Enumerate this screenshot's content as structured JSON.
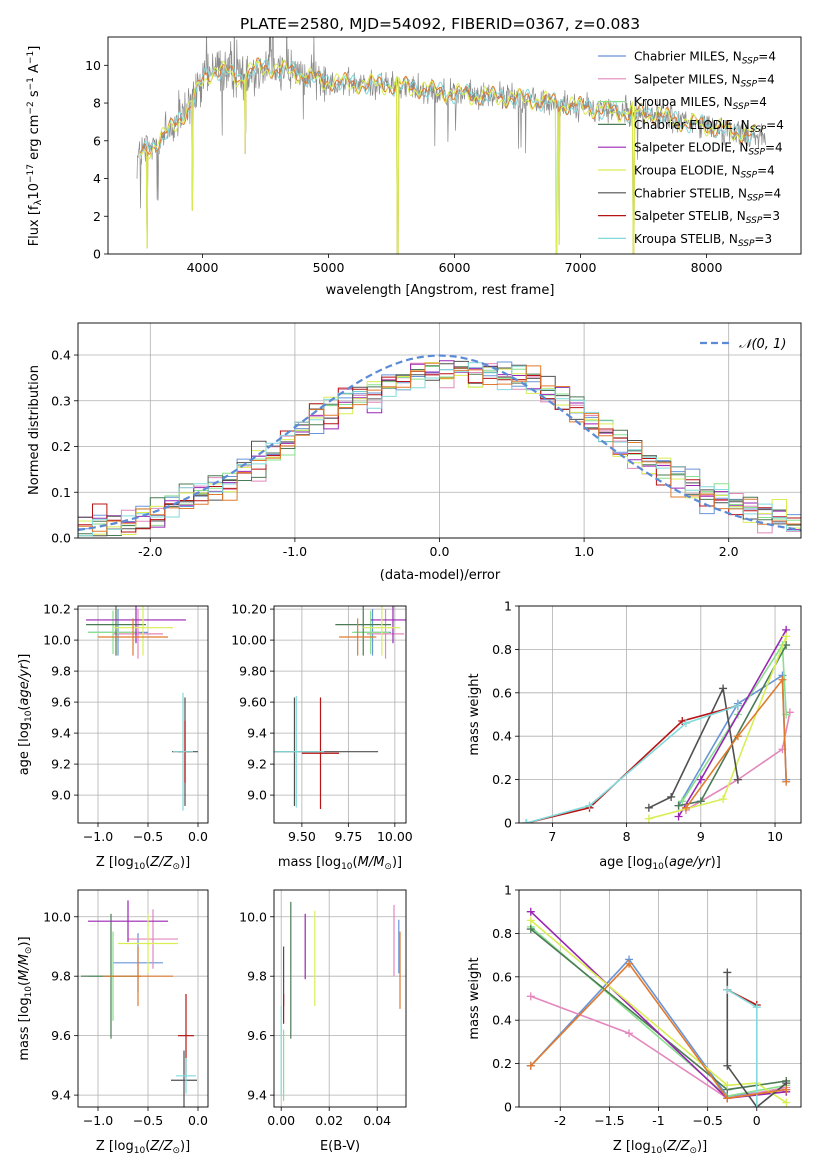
{
  "figure_title": "PLATE=2580, MJD=54092, FIBERID=0367, z=0.083",
  "colors": {
    "Chabrier MILES": "#6895d8",
    "Salpeter MILES": "#e487bc",
    "Kroupa MILES": "#88e08d",
    "Chabrier ELODIE": "#4b7a56",
    "Salpeter ELODIE": "#9a25b3",
    "Kroupa ELODIE": "#d9ee55",
    "Chabrier STELIB": "#505050",
    "Salpeter STELIB": "#b71515",
    "Kroupa STELIB": "#82dadc",
    "orange": "#e07a2e",
    "gray": "#8a8a8a",
    "normal": "#5b8ad6"
  },
  "chart_data": [
    {
      "id": "spectrum",
      "type": "line",
      "title": "PLATE=2580, MJD=54092, FIBERID=0367, z=0.083",
      "xlabel": "wavelength [Angstrom, rest frame]",
      "ylabel": "Flux [fλ10⁻¹⁷ erg cm⁻² s⁻¹ A⁻¹]",
      "xlim": [
        3250,
        8750
      ],
      "ylim": [
        0,
        11.5
      ],
      "xticks": [
        4000,
        5000,
        6000,
        7000,
        8000
      ],
      "yticks": [
        0,
        2,
        4,
        6,
        8,
        10
      ],
      "legend_position": "top-right",
      "legend": [
        {
          "name": "Chabrier MILES, N",
          "sub": "SSP",
          "suffix": "=4"
        },
        {
          "name": "Salpeter MILES, N",
          "sub": "SSP",
          "suffix": "=4"
        },
        {
          "name": "Kroupa MILES, N",
          "sub": "SSP",
          "suffix": "=4"
        },
        {
          "name": "Chabrier ELODIE, N",
          "sub": "SSP",
          "suffix": "=4"
        },
        {
          "name": "Salpeter ELODIE, N",
          "sub": "SSP",
          "suffix": "=4"
        },
        {
          "name": "Kroupa ELODIE, N",
          "sub": "SSP",
          "suffix": "=4"
        },
        {
          "name": "Chabrier STELIB, N",
          "sub": "SSP",
          "suffix": "=4"
        },
        {
          "name": "Salpeter STELIB, N",
          "sub": "SSP",
          "suffix": "=3"
        },
        {
          "name": "Kroupa STELIB, N",
          "sub": "SSP",
          "suffix": "=3"
        }
      ],
      "continuum": [
        [
          3500,
          5.2
        ],
        [
          3600,
          5.7
        ],
        [
          3700,
          6.3
        ],
        [
          3800,
          7.0
        ],
        [
          3900,
          7.8
        ],
        [
          4000,
          9.2
        ],
        [
          4100,
          9.8
        ],
        [
          4200,
          9.6
        ],
        [
          4300,
          9.3
        ],
        [
          4400,
          9.8
        ],
        [
          4500,
          9.9
        ],
        [
          4600,
          9.8
        ],
        [
          4700,
          9.7
        ],
        [
          4800,
          9.5
        ],
        [
          4900,
          9.2
        ],
        [
          5000,
          9.2
        ],
        [
          5200,
          9.0
        ],
        [
          5400,
          9.0
        ],
        [
          5600,
          8.9
        ],
        [
          5800,
          8.7
        ],
        [
          6000,
          8.5
        ],
        [
          6200,
          8.4
        ],
        [
          6400,
          8.3
        ],
        [
          6600,
          8.2
        ],
        [
          6800,
          8.0
        ],
        [
          7000,
          7.8
        ],
        [
          7200,
          7.6
        ],
        [
          7400,
          7.5
        ],
        [
          7600,
          7.4
        ],
        [
          7800,
          7.0
        ],
        [
          8000,
          6.8
        ],
        [
          8200,
          6.5
        ],
        [
          8400,
          6.3
        ]
      ],
      "model_range": [
        3500,
        8400
      ],
      "observed_range": [
        3480,
        8470
      ],
      "dips": [
        [
          3560,
          0.3
        ],
        [
          3920,
          2.3
        ],
        [
          4340,
          5.3
        ],
        [
          5550,
          0.0
        ],
        [
          6810,
          0.0
        ],
        [
          6830,
          0.5
        ],
        [
          7420,
          0.0
        ]
      ]
    },
    {
      "id": "residuals",
      "type": "bar",
      "xlabel": "(data-model)/error",
      "ylabel": "Normed distribution",
      "xlim": [
        -2.5,
        2.5
      ],
      "ylim": [
        0,
        0.47
      ],
      "xticks": [
        -2,
        -1,
        0,
        1,
        2
      ],
      "yticks": [
        0.0,
        0.1,
        0.2,
        0.3,
        0.4
      ],
      "legend_position": "top-right",
      "legend_label": "𝒩(0, 1)",
      "bin_width": 0.1,
      "n_bins": 50
    },
    {
      "id": "age_vs_Z",
      "type": "scatter",
      "xlabel": "Z [log10(Z/Z⊙)]",
      "ylabel": "age  [log10(age/yr)]",
      "xlim": [
        -1.2,
        0.1
      ],
      "ylim": [
        8.82,
        10.22
      ],
      "xticks": [
        -1.0,
        -0.5,
        0.0
      ],
      "yticks": [
        9.0,
        9.2,
        9.4,
        9.6,
        9.8,
        10.0,
        10.2
      ],
      "points": [
        {
          "model": "Chabrier MILES",
          "x": -0.8,
          "xerr": 0.3,
          "y": 10.05,
          "yerr": 0.15
        },
        {
          "model": "Salpeter MILES",
          "x": -0.6,
          "xerr": 0.25,
          "y": 10.04,
          "yerr": 0.16
        },
        {
          "model": "Kroupa MILES",
          "x": -0.85,
          "xerr": 0.25,
          "y": 10.05,
          "yerr": 0.14
        },
        {
          "model": "Chabrier ELODIE",
          "x": -0.82,
          "xerr": 0.3,
          "y": 10.1,
          "yerr": 0.2
        },
        {
          "model": "Salpeter ELODIE",
          "x": -0.62,
          "xerr": 0.5,
          "y": 10.13,
          "yerr": 0.15
        },
        {
          "model": "Kroupa ELODIE",
          "x": -0.55,
          "xerr": 0.3,
          "y": 10.08,
          "yerr": 0.18
        },
        {
          "model": "Chabrier STELIB",
          "x": -0.13,
          "xerr": 0.13,
          "y": 9.28,
          "yerr": 0.35
        },
        {
          "model": "Salpeter STELIB",
          "x": -0.13,
          "xerr": 0.07,
          "y": 9.28,
          "yerr": 0.2
        },
        {
          "model": "Kroupa STELIB",
          "x": -0.15,
          "xerr": 0.1,
          "y": 9.28,
          "yerr": 0.38
        },
        {
          "model": "orange",
          "x": -0.65,
          "xerr": 0.35,
          "y": 10.02,
          "yerr": 0.12
        }
      ]
    },
    {
      "id": "age_vs_mass",
      "type": "scatter",
      "xlabel": "mass [log10(M/M⊙)]",
      "xlim": [
        9.35,
        10.06
      ],
      "ylim": [
        8.82,
        10.22
      ],
      "xticks": [
        9.5,
        9.75,
        10.0
      ],
      "yticks": [
        9.0,
        9.2,
        9.4,
        9.6,
        9.8,
        10.0,
        10.2
      ],
      "points": [
        {
          "model": "Chabrier MILES",
          "x": 9.88,
          "xerr": 0.1,
          "y": 10.05,
          "yerr": 0.15
        },
        {
          "model": "Salpeter MILES",
          "x": 9.95,
          "xerr": 0.1,
          "y": 10.04,
          "yerr": 0.16
        },
        {
          "model": "Kroupa MILES",
          "x": 9.87,
          "xerr": 0.1,
          "y": 10.05,
          "yerr": 0.14
        },
        {
          "model": "Chabrier ELODIE",
          "x": 9.83,
          "xerr": 0.15,
          "y": 10.1,
          "yerr": 0.2
        },
        {
          "model": "Salpeter ELODIE",
          "x": 9.99,
          "xerr": 0.12,
          "y": 10.13,
          "yerr": 0.15
        },
        {
          "model": "Kroupa ELODIE",
          "x": 9.93,
          "xerr": 0.1,
          "y": 10.08,
          "yerr": 0.18
        },
        {
          "model": "Chabrier STELIB",
          "x": 9.46,
          "xerr": 0.45,
          "y": 9.28,
          "yerr": 0.35
        },
        {
          "model": "Salpeter STELIB",
          "x": 9.6,
          "xerr": 0.1,
          "y": 9.27,
          "yerr": 0.36
        },
        {
          "model": "Kroupa STELIB",
          "x": 9.47,
          "xerr": 0.15,
          "y": 9.28,
          "yerr": 0.36
        },
        {
          "model": "orange",
          "x": 9.8,
          "xerr": 0.1,
          "y": 10.02,
          "yerr": 0.12
        }
      ]
    },
    {
      "id": "mass_weight_vs_age",
      "type": "line",
      "xlabel": "age  [log10(age/yr)]",
      "ylabel": "mass weight",
      "xlim": [
        6.55,
        10.35
      ],
      "ylim": [
        0,
        1.0
      ],
      "xticks": [
        7,
        8,
        9,
        10
      ],
      "yticks": [
        0.0,
        0.2,
        0.4,
        0.6,
        0.8,
        1.0
      ],
      "series": [
        {
          "model": "Chabrier MILES",
          "x": [
            8.7,
            9.5,
            10.1,
            10.15
          ],
          "y": [
            0.08,
            0.55,
            0.68,
            0.2
          ]
        },
        {
          "model": "Salpeter MILES",
          "x": [
            8.8,
            9.5,
            10.1,
            10.2
          ],
          "y": [
            0.06,
            0.2,
            0.34,
            0.51
          ]
        },
        {
          "model": "Kroupa MILES",
          "x": [
            8.75,
            9.5,
            10.1,
            10.15
          ],
          "y": [
            0.1,
            0.5,
            0.82,
            0.5
          ]
        },
        {
          "model": "Chabrier ELODIE",
          "x": [
            8.7,
            9.0,
            10.15
          ],
          "y": [
            0.08,
            0.1,
            0.82
          ]
        },
        {
          "model": "Salpeter ELODIE",
          "x": [
            8.7,
            9.0,
            10.15
          ],
          "y": [
            0.03,
            0.2,
            0.89
          ]
        },
        {
          "model": "Kroupa ELODIE",
          "x": [
            8.3,
            9.3,
            10.15
          ],
          "y": [
            0.02,
            0.11,
            0.86
          ]
        },
        {
          "model": "Chabrier STELIB",
          "x": [
            8.3,
            8.6,
            9.3,
            9.5
          ],
          "y": [
            0.07,
            0.12,
            0.62,
            0.2
          ]
        },
        {
          "model": "Salpeter STELIB",
          "x": [
            6.65,
            7.5,
            8.75,
            9.5
          ],
          "y": [
            0.0,
            0.07,
            0.47,
            0.54
          ]
        },
        {
          "model": "Kroupa STELIB",
          "x": [
            6.65,
            7.5,
            8.8,
            9.5
          ],
          "y": [
            0.0,
            0.08,
            0.46,
            0.54
          ]
        },
        {
          "model": "orange",
          "x": [
            8.8,
            9.5,
            10.1,
            10.15
          ],
          "y": [
            0.07,
            0.4,
            0.66,
            0.19
          ]
        }
      ]
    },
    {
      "id": "mass_vs_Z",
      "type": "scatter",
      "xlabel": "Z [log10(Z/Z⊙)]",
      "ylabel": "mass [log10(M/M⊙)]",
      "xlim": [
        -1.2,
        0.1
      ],
      "ylim": [
        9.36,
        10.09
      ],
      "xticks": [
        -1.0,
        -0.5,
        0.0
      ],
      "yticks": [
        9.4,
        9.6,
        9.8,
        10.0
      ],
      "points": [
        {
          "model": "Chabrier MILES",
          "x": -0.6,
          "xerr": 0.25,
          "y": 9.845,
          "yerr": 0.1
        },
        {
          "model": "Salpeter MILES",
          "x": -0.45,
          "xerr": 0.25,
          "y": 9.925,
          "yerr": 0.1
        },
        {
          "model": "Kroupa MILES",
          "x": -0.85,
          "xerr": 0.25,
          "y": 9.8,
          "yerr": 0.15
        },
        {
          "model": "Chabrier ELODIE",
          "x": -0.87,
          "xerr": 0.3,
          "y": 9.8,
          "yerr": 0.21
        },
        {
          "model": "Salpeter ELODIE",
          "x": -0.7,
          "xerr": 0.4,
          "y": 9.985,
          "yerr": 0.07
        },
        {
          "model": "Kroupa ELODIE",
          "x": -0.5,
          "xerr": 0.3,
          "y": 9.91,
          "yerr": 0.1
        },
        {
          "model": "Chabrier STELIB",
          "x": -0.14,
          "xerr": 0.13,
          "y": 9.45,
          "yerr": 0.1
        },
        {
          "model": "Salpeter STELIB",
          "x": -0.12,
          "xerr": 0.08,
          "y": 9.6,
          "yerr": 0.14
        },
        {
          "model": "Kroupa STELIB",
          "x": -0.12,
          "xerr": 0.1,
          "y": 9.465,
          "yerr": 0.06
        },
        {
          "model": "orange",
          "x": -0.6,
          "xerr": 0.35,
          "y": 9.8,
          "yerr": 0.1
        }
      ]
    },
    {
      "id": "mass_vs_ebv",
      "type": "scatter",
      "xlabel": "E(B-V)",
      "xlim": [
        -0.003,
        0.052
      ],
      "ylim": [
        9.36,
        10.09
      ],
      "xticks": [
        0.0,
        0.02,
        0.04
      ],
      "yticks": [
        9.4,
        9.6,
        9.8,
        10.0
      ],
      "points": [
        {
          "model": "Chabrier MILES",
          "x": 0.049,
          "y": 9.9,
          "yerr": 0.09
        },
        {
          "model": "Salpeter MILES",
          "x": 0.047,
          "y": 9.92,
          "yerr": 0.12
        },
        {
          "model": "Kroupa MILES",
          "x": 0.001,
          "y": 9.5,
          "yerr": 0.12
        },
        {
          "model": "Chabrier ELODIE",
          "x": 0.004,
          "y": 9.82,
          "yerr": 0.23
        },
        {
          "model": "Salpeter ELODIE",
          "x": 0.01,
          "y": 9.9,
          "yerr": 0.11
        },
        {
          "model": "Kroupa ELODIE",
          "x": 0.014,
          "y": 9.86,
          "yerr": 0.16
        },
        {
          "model": "Chabrier STELIB",
          "x": 0.001,
          "y": 9.8,
          "yerr": 0.1
        },
        {
          "model": "Salpeter STELIB",
          "x": 0.001,
          "y": 9.69,
          "yerr": 0.05
        },
        {
          "model": "Kroupa STELIB",
          "x": 0.0,
          "y": 9.55,
          "yerr": 0.15
        },
        {
          "model": "orange",
          "x": 0.0495,
          "y": 9.82,
          "yerr": 0.13
        }
      ]
    },
    {
      "id": "mass_weight_vs_Z",
      "type": "line",
      "xlabel": "Z [log10(Z/Z⊙)]",
      "ylabel": "mass weight",
      "xlim": [
        -2.42,
        0.45
      ],
      "ylim": [
        0,
        1.0
      ],
      "xticks": [
        -2.0,
        -1.5,
        -1.0,
        -0.5,
        0.0
      ],
      "yticks": [
        0.0,
        0.2,
        0.4,
        0.6,
        0.8,
        1.0
      ],
      "series": [
        {
          "model": "Chabrier MILES",
          "x": [
            -2.3,
            -1.3,
            -0.3,
            0.3
          ],
          "y": [
            0.19,
            0.68,
            0.05,
            0.08
          ]
        },
        {
          "model": "Salpeter MILES",
          "x": [
            -2.3,
            -1.3,
            -0.3,
            0.3
          ],
          "y": [
            0.51,
            0.34,
            0.04,
            0.09
          ]
        },
        {
          "model": "Kroupa MILES",
          "x": [
            -2.3,
            -0.3,
            0.3
          ],
          "y": [
            0.83,
            0.05,
            0.1
          ]
        },
        {
          "model": "Chabrier ELODIE",
          "x": [
            -2.3,
            -0.3,
            0.3
          ],
          "y": [
            0.82,
            0.08,
            0.12
          ]
        },
        {
          "model": "Salpeter ELODIE",
          "x": [
            -2.3,
            -0.3,
            0.3
          ],
          "y": [
            0.9,
            0.04,
            0.07
          ]
        },
        {
          "model": "Kroupa ELODIE",
          "x": [
            -2.3,
            -0.3,
            0.0,
            0.3
          ],
          "y": [
            0.86,
            0.1,
            0.11,
            0.02
          ]
        },
        {
          "model": "Chabrier STELIB",
          "x": [
            -0.3,
            -0.3,
            0.0,
            0.3
          ],
          "y": [
            0.62,
            0.19,
            0.0,
            0.11
          ]
        },
        {
          "model": "Salpeter STELIB",
          "x": [
            -0.3,
            0.0
          ],
          "y": [
            0.54,
            0.47
          ]
        },
        {
          "model": "Kroupa STELIB",
          "x": [
            -0.3,
            0.0,
            0.0
          ],
          "y": [
            0.54,
            0.46,
            0.0
          ]
        },
        {
          "model": "orange",
          "x": [
            -2.3,
            -1.3,
            -0.3,
            0.3
          ],
          "y": [
            0.19,
            0.66,
            0.04,
            0.08
          ]
        }
      ]
    }
  ]
}
